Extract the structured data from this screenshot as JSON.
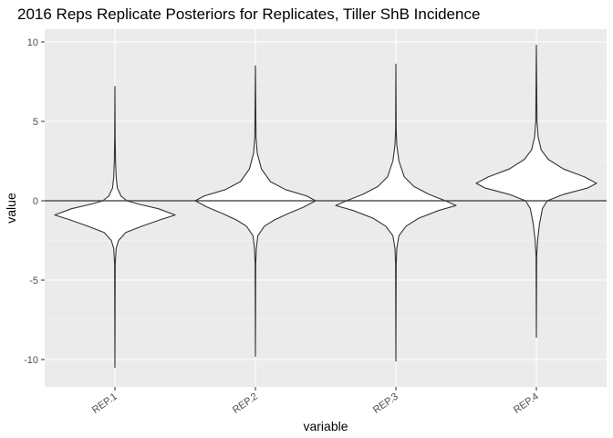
{
  "chart_data": {
    "type": "violin",
    "title": "2016 Reps Replicate Posteriors for Replicates, Tiller ShB Incidence",
    "xlabel": "variable",
    "ylabel": "value",
    "ylim": [
      -11.5,
      10.8
    ],
    "yticks": [
      10,
      5,
      0,
      -5,
      -10
    ],
    "ytick_labels": [
      "10",
      "5",
      "0",
      "-5",
      "-10"
    ],
    "grid": true,
    "legend": "none",
    "reference_line": 0,
    "categories": [
      "REP.1",
      "REP.2",
      "REP.3",
      "REP.4"
    ],
    "series": [
      {
        "category": "REP.1",
        "min": -10.5,
        "max": 7.2,
        "profile": [
          [
            -10.5,
            0
          ],
          [
            -4,
            0.005
          ],
          [
            -3,
            0.02
          ],
          [
            -2.5,
            0.06
          ],
          [
            -2,
            0.18
          ],
          [
            -1.6,
            0.45
          ],
          [
            -1.2,
            0.75
          ],
          [
            -0.9,
            1.0
          ],
          [
            -0.5,
            0.72
          ],
          [
            -0.2,
            0.38
          ],
          [
            0,
            0.2
          ],
          [
            0.3,
            0.1
          ],
          [
            0.8,
            0.04
          ],
          [
            1.5,
            0.02
          ],
          [
            2.5,
            0.01
          ],
          [
            4,
            0.004
          ],
          [
            7.2,
            0
          ]
        ]
      },
      {
        "category": "REP.2",
        "min": -9.8,
        "max": 8.5,
        "profile": [
          [
            -9.8,
            0
          ],
          [
            -4,
            0.005
          ],
          [
            -3,
            0.015
          ],
          [
            -2.2,
            0.04
          ],
          [
            -1.6,
            0.15
          ],
          [
            -1.2,
            0.32
          ],
          [
            -0.8,
            0.55
          ],
          [
            -0.4,
            0.8
          ],
          [
            0,
            1.0
          ],
          [
            0.3,
            0.85
          ],
          [
            0.7,
            0.5
          ],
          [
            1.2,
            0.25
          ],
          [
            2,
            0.1
          ],
          [
            3,
            0.03
          ],
          [
            4,
            0.01
          ],
          [
            8.5,
            0
          ]
        ]
      },
      {
        "category": "REP.3",
        "min": -10.1,
        "max": 8.6,
        "profile": [
          [
            -10.1,
            0
          ],
          [
            -4,
            0.005
          ],
          [
            -3,
            0.015
          ],
          [
            -2.2,
            0.05
          ],
          [
            -1.6,
            0.17
          ],
          [
            -1.1,
            0.38
          ],
          [
            -0.6,
            0.72
          ],
          [
            -0.3,
            1.0
          ],
          [
            0,
            0.82
          ],
          [
            0.4,
            0.55
          ],
          [
            0.9,
            0.3
          ],
          [
            1.5,
            0.14
          ],
          [
            2.5,
            0.05
          ],
          [
            3.5,
            0.015
          ],
          [
            4.5,
            0.005
          ],
          [
            8.6,
            0
          ]
        ]
      },
      {
        "category": "REP.4",
        "min": -8.6,
        "max": 9.8,
        "profile": [
          [
            -8.6,
            0
          ],
          [
            -3.5,
            0.005
          ],
          [
            -2.5,
            0.02
          ],
          [
            -1.5,
            0.05
          ],
          [
            -0.5,
            0.1
          ],
          [
            0,
            0.18
          ],
          [
            0.4,
            0.45
          ],
          [
            0.8,
            0.85
          ],
          [
            1.1,
            1.0
          ],
          [
            1.5,
            0.8
          ],
          [
            2,
            0.45
          ],
          [
            2.6,
            0.2
          ],
          [
            3.2,
            0.08
          ],
          [
            4,
            0.03
          ],
          [
            5,
            0.01
          ],
          [
            9.8,
            0
          ]
        ]
      }
    ]
  }
}
